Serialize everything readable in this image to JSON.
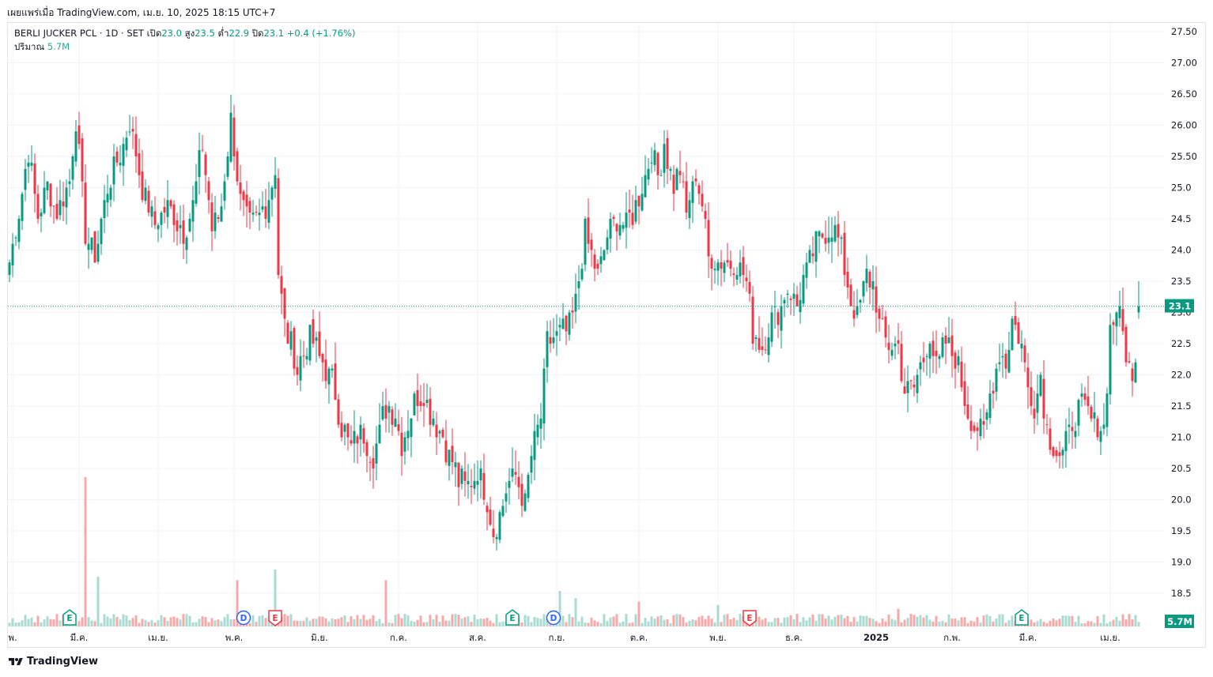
{
  "header": {
    "published": "เผยแพร่เมื่อ TradingView.com, เม.ย. 10, 2025 18:15 UTC+7"
  },
  "legend": {
    "symbol": "BERLI JUCKER PCL · 1D · SET",
    "open_label": "เปิด",
    "open": "23.0",
    "high_label": "สูง",
    "high": "23.5",
    "low_label": "ต่ำ",
    "low": "22.9",
    "close_label": "ปิด",
    "close": "23.1",
    "change": "+0.4 (+1.76%)",
    "volume_label": "ปริมาณ",
    "volume": "5.7M"
  },
  "footer": {
    "brand": "TradingView"
  },
  "colors": {
    "up": "#089981",
    "down": "#f23645",
    "up_vol": "#a9dbd3",
    "down_vol": "#f7a9a7",
    "grid": "#f0f3fa",
    "text": "#131722"
  },
  "chart_data": {
    "type": "candlestick",
    "title": "BERLI JUCKER PCL · 1D · SET",
    "ylim": [
      18.2,
      27.6
    ],
    "y_ticks": [
      "27.50",
      "27.00",
      "26.50",
      "26.00",
      "25.50",
      "25.0",
      "24.5",
      "24.0",
      "23.5",
      "23.0",
      "22.5",
      "22.0",
      "21.5",
      "21.0",
      "20.5",
      "20.0",
      "19.5",
      "19.0",
      "18.5"
    ],
    "x_ticks": [
      "พ.",
      "มี.ค.",
      "เม.ย.",
      "พ.ค.",
      "มิ.ย.",
      "ก.ค.",
      "ส.ค.",
      "ก.ย.",
      "ต.ค.",
      "พ.ย.",
      "ธ.ค.",
      "2025",
      "ก.พ.",
      "มี.ค.",
      "เม.ย."
    ],
    "x_tick_index": [
      1,
      22,
      47,
      71,
      98,
      123,
      148,
      173,
      199,
      224,
      248,
      274,
      298,
      322,
      348
    ],
    "last_price_label": "23.1",
    "last_price": 23.1,
    "last_volume_label": "5.7M",
    "events": [
      {
        "label": "E",
        "index": 19,
        "kind": "earnings-up"
      },
      {
        "label": "D",
        "index": 74,
        "kind": "dividend"
      },
      {
        "label": "E",
        "index": 84,
        "kind": "earnings-down"
      },
      {
        "label": "E",
        "index": 159,
        "kind": "earnings-up"
      },
      {
        "label": "D",
        "index": 172,
        "kind": "dividend"
      },
      {
        "label": "E",
        "index": 234,
        "kind": "earnings-down"
      },
      {
        "label": "E",
        "index": 320,
        "kind": "earnings-up"
      }
    ],
    "keypoints": [
      [
        0,
        23.8
      ],
      [
        3,
        24.6
      ],
      [
        6,
        25.6
      ],
      [
        9,
        24.5
      ],
      [
        12,
        25.0
      ],
      [
        15,
        24.6
      ],
      [
        19,
        25.1
      ],
      [
        21,
        26.1
      ],
      [
        24,
        24.3
      ],
      [
        27,
        23.9
      ],
      [
        31,
        25.0
      ],
      [
        35,
        25.5
      ],
      [
        38,
        26.1
      ],
      [
        42,
        25.0
      ],
      [
        46,
        24.4
      ],
      [
        50,
        24.7
      ],
      [
        55,
        24.3
      ],
      [
        58,
        24.7
      ],
      [
        61,
        25.7
      ],
      [
        64,
        24.3
      ],
      [
        67,
        24.7
      ],
      [
        70,
        26.1
      ],
      [
        73,
        24.8
      ],
      [
        76,
        24.4
      ],
      [
        81,
        24.7
      ],
      [
        84,
        25.3
      ],
      [
        85,
        23.6
      ],
      [
        87,
        22.8
      ],
      [
        91,
        22.1
      ],
      [
        95,
        22.6
      ],
      [
        98,
        22.3
      ],
      [
        102,
        21.9
      ],
      [
        105,
        21.2
      ],
      [
        108,
        20.8
      ],
      [
        111,
        21.1
      ],
      [
        115,
        20.7
      ],
      [
        119,
        21.5
      ],
      [
        122,
        21.4
      ],
      [
        124,
        20.9
      ],
      [
        128,
        21.6
      ],
      [
        131,
        21.7
      ],
      [
        134,
        21.3
      ],
      [
        137,
        21.0
      ],
      [
        140,
        20.6
      ],
      [
        142,
        20.3
      ],
      [
        145,
        20.2
      ],
      [
        148,
        20.5
      ],
      [
        151,
        20.0
      ],
      [
        153,
        19.5
      ],
      [
        155,
        19.8
      ],
      [
        158,
        20.3
      ],
      [
        160,
        20.4
      ],
      [
        163,
        19.9
      ],
      [
        165,
        20.7
      ],
      [
        168,
        21.3
      ],
      [
        170,
        22.5
      ],
      [
        173,
        22.6
      ],
      [
        176,
        22.7
      ],
      [
        178,
        22.9
      ],
      [
        180,
        23.5
      ],
      [
        182,
        24.3
      ],
      [
        186,
        23.6
      ],
      [
        189,
        24.2
      ],
      [
        192,
        24.5
      ],
      [
        195,
        24.4
      ],
      [
        198,
        24.7
      ],
      [
        200,
        25.0
      ],
      [
        203,
        25.6
      ],
      [
        205,
        25.2
      ],
      [
        207,
        25.7
      ],
      [
        210,
        25.0
      ],
      [
        212,
        25.3
      ],
      [
        214,
        24.6
      ],
      [
        217,
        25.2
      ],
      [
        219,
        24.7
      ],
      [
        221,
        23.9
      ],
      [
        224,
        23.8
      ],
      [
        227,
        23.8
      ],
      [
        230,
        23.8
      ],
      [
        233,
        23.5
      ],
      [
        235,
        22.7
      ],
      [
        238,
        22.4
      ],
      [
        241,
        22.9
      ],
      [
        244,
        23.1
      ],
      [
        246,
        23.4
      ],
      [
        249,
        23.1
      ],
      [
        251,
        23.5
      ],
      [
        254,
        24.0
      ],
      [
        257,
        24.2
      ],
      [
        260,
        24.4
      ],
      [
        262,
        24.2
      ],
      [
        264,
        23.7
      ],
      [
        266,
        23.2
      ],
      [
        268,
        22.9
      ],
      [
        271,
        23.6
      ],
      [
        273,
        23.5
      ],
      [
        275,
        22.8
      ],
      [
        278,
        22.5
      ],
      [
        281,
        22.5
      ],
      [
        283,
        21.7
      ],
      [
        286,
        21.8
      ],
      [
        289,
        22.3
      ],
      [
        291,
        22.7
      ],
      [
        293,
        22.1
      ],
      [
        296,
        22.5
      ],
      [
        299,
        22.3
      ],
      [
        301,
        21.9
      ],
      [
        303,
        21.4
      ],
      [
        305,
        21.2
      ],
      [
        308,
        21.1
      ],
      [
        311,
        21.9
      ],
      [
        313,
        22.4
      ],
      [
        315,
        22.2
      ],
      [
        317,
        22.9
      ],
      [
        320,
        22.5
      ],
      [
        322,
        21.8
      ],
      [
        324,
        21.5
      ],
      [
        326,
        22.0
      ],
      [
        328,
        21.1
      ],
      [
        331,
        20.8
      ],
      [
        333,
        20.7
      ],
      [
        336,
        21.2
      ],
      [
        339,
        21.5
      ],
      [
        342,
        21.3
      ],
      [
        344,
        21.2
      ],
      [
        346,
        21.1
      ],
      [
        348,
        22.7
      ],
      [
        350,
        23.1
      ],
      [
        353,
        22.4
      ],
      [
        355,
        21.8
      ],
      [
        357,
        23.1
      ]
    ],
    "volume_spikes": [
      [
        24,
        4.2
      ],
      [
        28,
        1.4
      ],
      [
        72,
        1.3
      ],
      [
        84,
        1.6
      ],
      [
        119,
        1.3
      ],
      [
        174,
        1.0
      ],
      [
        179,
        0.8
      ],
      [
        199,
        0.7
      ],
      [
        224,
        0.6
      ],
      [
        281,
        0.5
      ]
    ]
  }
}
